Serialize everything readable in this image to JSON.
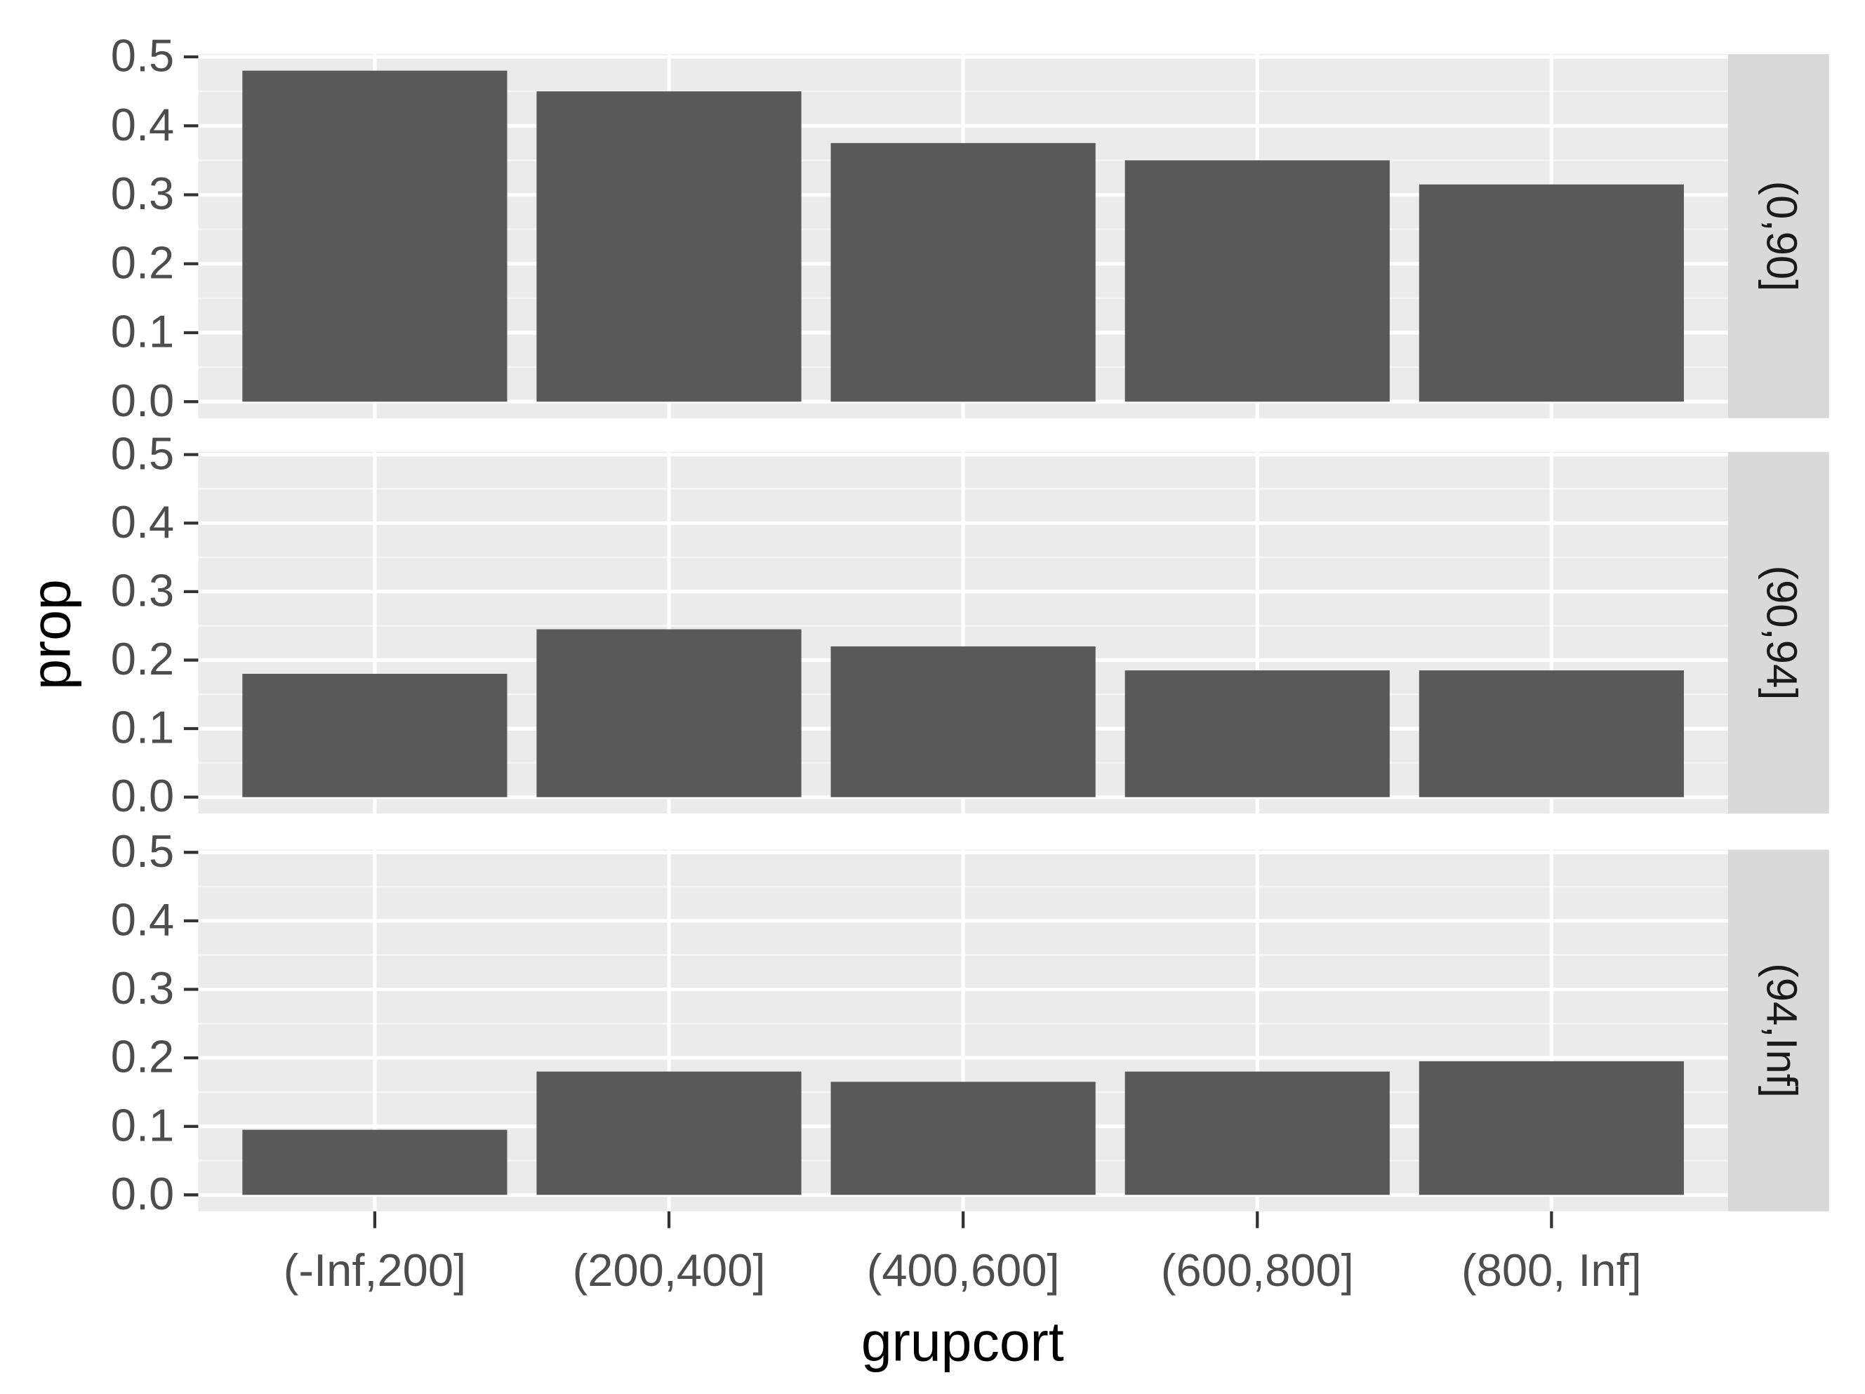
{
  "chart_data": {
    "type": "bar",
    "facet": true,
    "x_label": "grupcort",
    "y_label": "prop",
    "categories": [
      "(-Inf,200]",
      "(200,400]",
      "(400,600]",
      "(600,800]",
      "(800, Inf]"
    ],
    "color": "#595959",
    "grid": true,
    "ylim": [
      -0.024,
      0.504
    ],
    "yticks": [
      {
        "value": 0,
        "label": "0.0"
      },
      0.1,
      0.2,
      0.3,
      0.4,
      0.5
    ],
    "series": [
      {
        "name": "(0,90]",
        "values": [
          0.48,
          0.45,
          0.375,
          0.35,
          0.315
        ]
      },
      {
        "name": "(90,94]",
        "values": [
          0.18,
          0.245,
          0.22,
          0.185,
          0.185
        ]
      },
      {
        "name": "(94,Inf]",
        "values": [
          0.095,
          0.18,
          0.165,
          0.18,
          0.195
        ]
      }
    ]
  }
}
